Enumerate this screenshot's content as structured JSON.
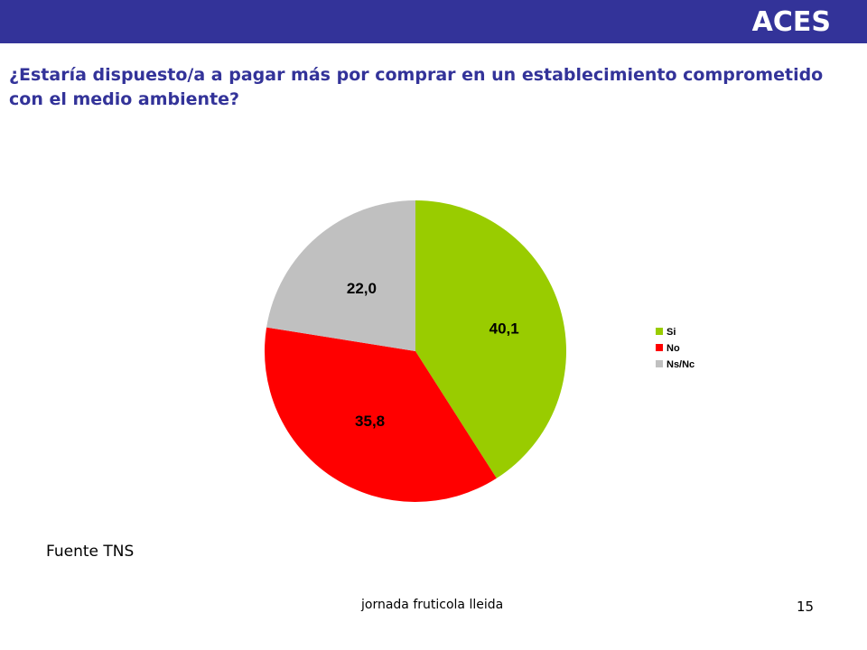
{
  "header": {
    "brand": "ACES",
    "bar_color": "#333399"
  },
  "question": "¿Estaría dispuesto/a a pagar más por comprar en un establecimiento comprometido con el medio ambiente?",
  "chart_data": {
    "type": "pie",
    "slices": [
      {
        "name": "Si",
        "value": 40.1,
        "label": "40,1",
        "color": "#99CC00"
      },
      {
        "name": "No",
        "value": 35.8,
        "label": "35,8",
        "color": "#FF0000"
      },
      {
        "name": "Ns/Nc",
        "value": 22.0,
        "label": "22,0",
        "color": "#C0C0C0"
      }
    ],
    "start": "12 o'clock",
    "direction": "clockwise",
    "legend_position": "right"
  },
  "source": "Fuente TNS",
  "footer": "jornada fruticola lleida",
  "page_number": "15"
}
